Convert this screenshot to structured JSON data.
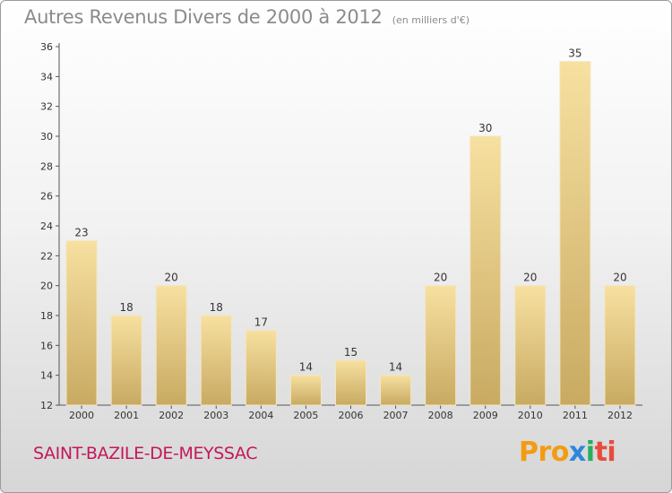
{
  "chart_data": {
    "type": "bar",
    "title": "Autres Revenus Divers de 2000 à 2012",
    "unit": "(en milliers d'€)",
    "categories": [
      "2000",
      "2001",
      "2002",
      "2003",
      "2004",
      "2005",
      "2006",
      "2007",
      "2008",
      "2009",
      "2010",
      "2011",
      "2012"
    ],
    "values": [
      23,
      18,
      20,
      18,
      17,
      14,
      15,
      14,
      20,
      30,
      20,
      35,
      20
    ],
    "ylim": [
      12,
      36
    ],
    "yticks": [
      12,
      14,
      16,
      18,
      20,
      22,
      24,
      26,
      28,
      30,
      32,
      34,
      36
    ],
    "grid": false,
    "bar_color_light": "#f7e0a0",
    "bar_color_dark": "#c8aa62"
  },
  "footer": {
    "commune": "SAINT-BAZILE-DE-MEYSSAC",
    "brand": [
      "Pro",
      "x",
      "i",
      "ti"
    ],
    "brand_colors": [
      "#f39c12",
      "#2e86de",
      "#27ae60",
      "#e74c3c"
    ]
  }
}
